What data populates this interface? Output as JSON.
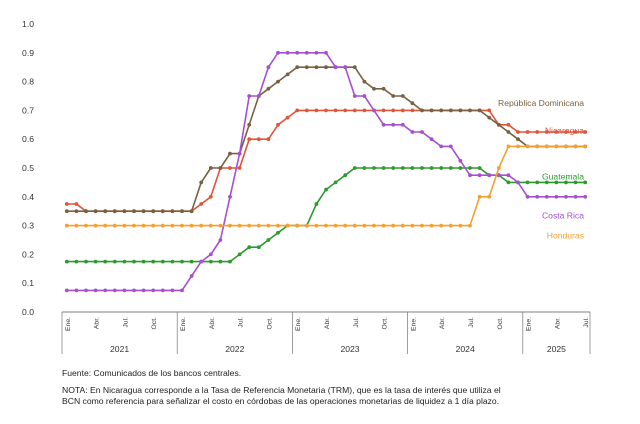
{
  "chart_data": {
    "type": "line",
    "ylim": [
      0,
      1.0
    ],
    "yticks": [
      "0.0",
      "0.1",
      "0.2",
      "0.3",
      "0.4",
      "0.5",
      "0.6",
      "0.7",
      "0.8",
      "0.9",
      "1.0"
    ],
    "grid": false,
    "legend": "right, inline labels next to line ends",
    "month_ticks": [
      "Ene.",
      "Abr.",
      "Jul.",
      "Oct."
    ],
    "years": [
      "2021",
      "2022",
      "2023",
      "2024",
      "2025"
    ],
    "x_start": "2021-01",
    "x_end": "2025-07",
    "series": [
      {
        "name": "Nicaragua",
        "color": "#e0553a",
        "label_value": 0.63,
        "values": [
          [
            0,
            0.375
          ],
          [
            1,
            0.375
          ],
          [
            2,
            0.35
          ],
          [
            12,
            0.35
          ],
          [
            13,
            0.35
          ],
          [
            14,
            0.375
          ],
          [
            15,
            0.4
          ],
          [
            16,
            0.5
          ],
          [
            17,
            0.5
          ],
          [
            18,
            0.5
          ],
          [
            19,
            0.6
          ],
          [
            20,
            0.6
          ],
          [
            21,
            0.6
          ],
          [
            22,
            0.65
          ],
          [
            24,
            0.7
          ],
          [
            29,
            0.7
          ],
          [
            36,
            0.7
          ],
          [
            42,
            0.7
          ],
          [
            43,
            0.7
          ],
          [
            44,
            0.7
          ],
          [
            45,
            0.65
          ],
          [
            46,
            0.65
          ],
          [
            47,
            0.625
          ],
          [
            48,
            0.625
          ],
          [
            51,
            0.625
          ],
          [
            54,
            0.625
          ]
        ]
      },
      {
        "name": "República Dominicana",
        "color": "#7a6040",
        "label_value": 0.725,
        "values": [
          [
            0,
            0.35
          ],
          [
            12,
            0.35
          ],
          [
            13,
            0.35
          ],
          [
            14,
            0.45
          ],
          [
            15,
            0.5
          ],
          [
            16,
            0.5
          ],
          [
            17,
            0.55
          ],
          [
            18,
            0.55
          ],
          [
            19,
            0.65
          ],
          [
            20,
            0.75
          ],
          [
            21,
            0.775
          ],
          [
            22,
            0.8
          ],
          [
            23,
            0.825
          ],
          [
            24,
            0.85
          ],
          [
            30,
            0.85
          ],
          [
            31,
            0.8
          ],
          [
            32,
            0.775
          ],
          [
            33,
            0.775
          ],
          [
            34,
            0.75
          ],
          [
            35,
            0.75
          ],
          [
            36,
            0.725
          ],
          [
            37,
            0.7
          ],
          [
            43,
            0.7
          ],
          [
            44,
            0.675
          ],
          [
            45,
            0.65
          ],
          [
            46,
            0.625
          ],
          [
            47,
            0.6
          ],
          [
            48,
            0.575
          ],
          [
            51,
            0.575
          ],
          [
            54,
            0.575
          ]
        ]
      },
      {
        "name": "Guatemala",
        "color": "#2e9a2e",
        "label_value": 0.47,
        "values": [
          [
            0,
            0.175
          ],
          [
            15,
            0.175
          ],
          [
            16,
            0.175
          ],
          [
            17,
            0.175
          ],
          [
            18,
            0.2
          ],
          [
            19,
            0.225
          ],
          [
            20,
            0.225
          ],
          [
            21,
            0.25
          ],
          [
            22,
            0.275
          ],
          [
            23,
            0.3
          ],
          [
            24,
            0.3
          ],
          [
            25,
            0.3
          ],
          [
            26,
            0.375
          ],
          [
            27,
            0.425
          ],
          [
            28,
            0.45
          ],
          [
            29,
            0.475
          ],
          [
            30,
            0.5
          ],
          [
            42,
            0.5
          ],
          [
            43,
            0.5
          ],
          [
            44,
            0.475
          ],
          [
            45,
            0.475
          ],
          [
            46,
            0.45
          ],
          [
            54,
            0.45
          ]
        ]
      },
      {
        "name": "Costa Rica",
        "color": "#a64fd1",
        "label_value": 0.335,
        "values": [
          [
            0,
            0.075
          ],
          [
            11,
            0.075
          ],
          [
            12,
            0.075
          ],
          [
            13,
            0.125
          ],
          [
            14,
            0.175
          ],
          [
            15,
            0.2
          ],
          [
            16,
            0.25
          ],
          [
            17,
            0.4
          ],
          [
            18,
            0.55
          ],
          [
            19,
            0.75
          ],
          [
            20,
            0.75
          ],
          [
            21,
            0.85
          ],
          [
            22,
            0.9
          ],
          [
            27,
            0.9
          ],
          [
            28,
            0.85
          ],
          [
            29,
            0.85
          ],
          [
            30,
            0.75
          ],
          [
            31,
            0.75
          ],
          [
            32,
            0.7
          ],
          [
            33,
            0.65
          ],
          [
            34,
            0.65
          ],
          [
            35,
            0.65
          ],
          [
            36,
            0.625
          ],
          [
            37,
            0.625
          ],
          [
            38,
            0.6
          ],
          [
            39,
            0.575
          ],
          [
            40,
            0.575
          ],
          [
            41,
            0.525
          ],
          [
            42,
            0.475
          ],
          [
            46,
            0.475
          ],
          [
            47,
            0.45
          ],
          [
            48,
            0.4
          ],
          [
            49,
            0.4
          ],
          [
            54,
            0.4
          ]
        ]
      },
      {
        "name": "Honduras",
        "color": "#f4a030",
        "label_value": 0.265,
        "values": [
          [
            0,
            0.3
          ],
          [
            40,
            0.3
          ],
          [
            41,
            0.3
          ],
          [
            42,
            0.3
          ],
          [
            43,
            0.4
          ],
          [
            44,
            0.4
          ],
          [
            45,
            0.5
          ],
          [
            46,
            0.575
          ],
          [
            54,
            0.575
          ]
        ]
      }
    ]
  },
  "notes": {
    "source": "Fuente: Comunicados de los bancos centrales.",
    "footnote": "NOTA: En Nicaragua corresponde a la Tasa de Referencia Monetaria (TRM), que es la tasa de interés que utiliza el BCN como referencia para señalizar el costo en córdobas de las operaciones monetarias de liquidez a 1 día plazo."
  }
}
